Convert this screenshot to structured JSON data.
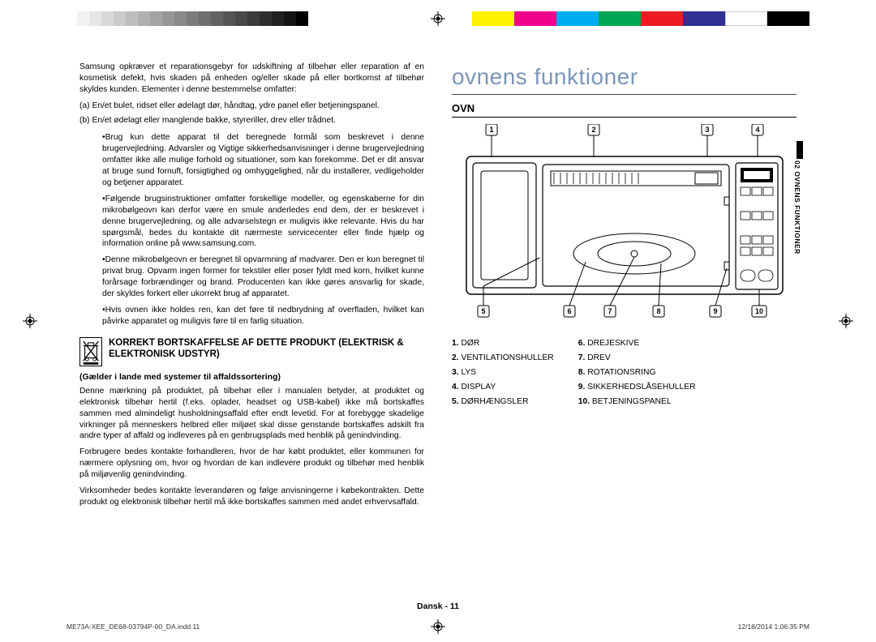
{
  "colorbar_gray": [
    "#ffffff",
    "#f2f2f2",
    "#e5e5e5",
    "#d8d8d8",
    "#cbcbcb",
    "#bebebe",
    "#b0b0b0",
    "#a3a3a3",
    "#969696",
    "#898989",
    "#7c7c7c",
    "#6f6f6f",
    "#626262",
    "#555555",
    "#484848",
    "#3b3b3b",
    "#2e2e2e",
    "#212121",
    "#141414",
    "#000000"
  ],
  "colorbar_cmyk": [
    "#fff200",
    "#ec008c",
    "#00aeef",
    "#00a651",
    "#ed1c24",
    "#2e3192",
    "#ffffff",
    "#000000"
  ],
  "left": {
    "intro": "Samsung opkræver et reparationsgebyr for udskiftning af tilbehør eller reparation af en kosmetisk defekt, hvis skaden på enheden og/eller skade på eller bortkomst af tilbehør skyldes kunden. Elementer i denne bestemmelse omfatter:",
    "a": "(a)  En/et bulet, ridset eller ødelagt dør, håndtag, ydre panel eller betjeningspanel.",
    "b": "(b)  En/et ødelagt eller manglende bakke, styreriller, drev eller trådnet.",
    "bullets": [
      "Brug kun dette apparat til det beregnede formål som beskrevet i denne brugervejledning. Advarsler og Vigtige sikkerhedsanvisninger i denne brugervejledning omfatter ikke alle mulige forhold og situationer, som kan forekomme. Det er dit ansvar at bruge sund fornuft, forsigtighed og omhyggelighed, når du installerer, vedligeholder og betjener apparatet.",
      "Følgende brugsinstruktioner omfatter forskellige modeller, og egenskaberne for din mikrobølgeovn kan derfor være en smule anderledes end dem, der er beskrevet i denne brugervejledning, og alle advarselstegn er muligvis ikke relevante. Hvis du har spørgsmål, bedes du kontakte dit nærmeste servicecenter eller finde hjælp og information online på www.samsung.com.",
      "Denne mikrobølgeovn er beregnet til opvarmning af madvarer. Den er kun beregnet til privat brug. Opvarm ingen former for tekstiler eller poser fyldt med korn, hvilket kunne forårsage forbrændinger og brand. Producenten kan ikke gøres ansvarlig for skade, der skyldes forkert eller ukorrekt brug af apparatet.",
      "Hvis ovnen ikke holdes ren, kan det føre til nedbrydning af overfladen, hvilket kan påvirke apparatet og muligvis føre til en farlig situation."
    ],
    "weee_title": "KORREKT BORTSKAFFELSE AF DETTE PRODUKT (ELEKTRISK & ELEKTRONISK UDSTYR)",
    "weee_sub": "(Gælder i lande med systemer til affaldssortering)",
    "weee_p1": "Denne mærkning på produktet, på tilbehør eller i manualen betyder, at produktet og elektronisk tilbehør hertil (f.eks. oplader, headset og USB-kabel) ikke må bortskaffes sammen med almindeligt husholdningsaffald efter endt levetid. For at forebygge skadelige virkninger på menneskers helbred eller miljøet skal disse genstande bortskaffes adskilt fra andre typer af affald og indleveres på en genbrugsplads med henblik på genindvinding.",
    "weee_p2": "Forbrugere bedes kontakte forhandleren, hvor de har købt produktet, eller kommunen for nærmere oplysning om, hvor og hvordan de kan indlevere produkt og tilbehør med henblik på miljøvenlig genindvinding.",
    "weee_p3": "Virksomheder bedes kontakte leverandøren og følge anvisningerne i købekontrakten. Dette produkt og elektronisk tilbehør hertil må ikke bortskaffes sammen med andet erhvervsaffald."
  },
  "right": {
    "title": "ovnens funktioner",
    "sub": "OVN",
    "side_tab": "02  OVNENS FUNKTIONER",
    "callouts_top": [
      "1",
      "2",
      "3",
      "4"
    ],
    "callouts_bottom": [
      "5",
      "6",
      "7",
      "8",
      "9",
      "10"
    ],
    "legend_left": [
      {
        "n": "1.",
        "t": "DØR"
      },
      {
        "n": "2.",
        "t": "VENTILATIONSHULLER"
      },
      {
        "n": "3.",
        "t": "LYS"
      },
      {
        "n": "4.",
        "t": "DISPLAY"
      },
      {
        "n": "5.",
        "t": "DØRHÆNGSLER"
      }
    ],
    "legend_right": [
      {
        "n": "6.",
        "t": "DREJESKIVE"
      },
      {
        "n": "7.",
        "t": "DREV"
      },
      {
        "n": "8.",
        "t": "ROTATIONSRING"
      },
      {
        "n": "9.",
        "t": "SIKKERHEDSLÅSEHULLER"
      },
      {
        "n": "10.",
        "t": "BETJENINGSPANEL"
      }
    ]
  },
  "footer": {
    "center": "Dansk - 11",
    "left": "ME73A-XEE_DE68-03794P-00_DA.indd   11",
    "right": "12/18/2014   1:06:35 PM"
  },
  "colors": {
    "title_blue": "#7a95b8",
    "rule": "#444444",
    "text": "#000000"
  }
}
